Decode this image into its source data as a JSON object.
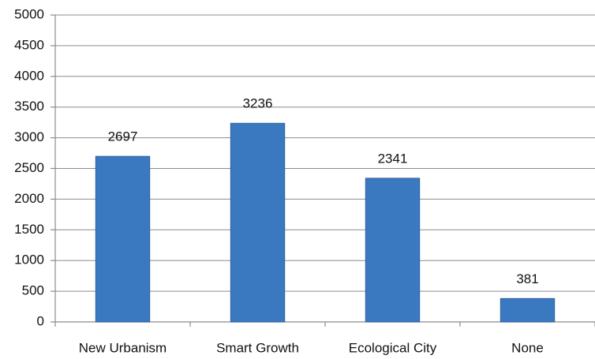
{
  "chart_data": {
    "type": "bar",
    "categories": [
      "New Urbanism",
      "Smart Growth",
      "Ecological City",
      "None"
    ],
    "values": [
      2697,
      3236,
      2341,
      381
    ],
    "color": "#3a78c0",
    "ylim": [
      0,
      5000
    ],
    "yticks": [
      0,
      500,
      1000,
      1500,
      2000,
      2500,
      3000,
      3500,
      4000,
      4500,
      5000
    ],
    "grid": true
  }
}
